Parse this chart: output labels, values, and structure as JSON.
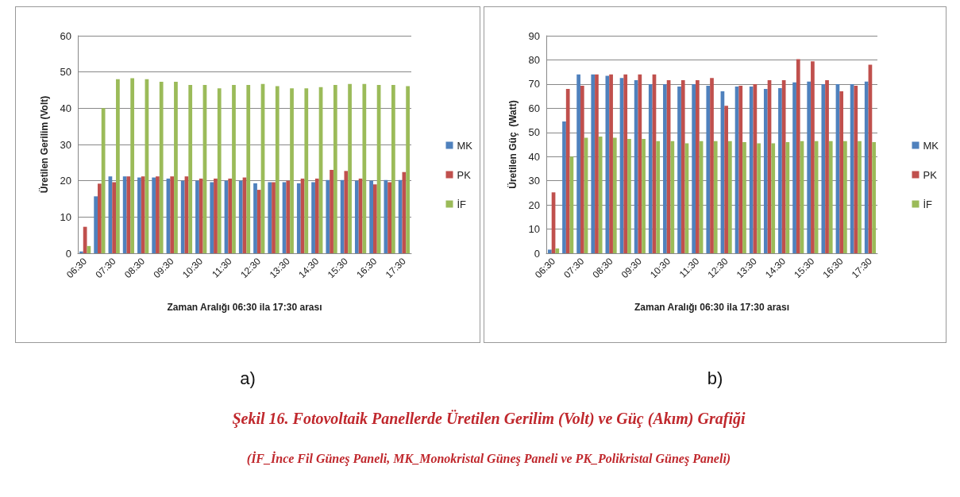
{
  "chart_data": [
    {
      "type": "bar",
      "title": "a)",
      "xlabel": "Zaman Aralığı 06:30 ila 17:30 arası",
      "ylabel": "Üretilen Gerilim (Volt)",
      "categories": [
        "06:30",
        null,
        "07:30",
        null,
        "08:30",
        null,
        "09:30",
        null,
        "10:30",
        null,
        "11:30",
        null,
        "12:30",
        null,
        "13:30",
        null,
        "14:30",
        null,
        "15:30",
        null,
        "16:30",
        null,
        "17:30"
      ],
      "series": [
        {
          "name": "MK",
          "color": "#4f81bd",
          "values": [
            0.5,
            15.7,
            21.2,
            21.2,
            20.9,
            20.9,
            20.6,
            20,
            20,
            19.6,
            20,
            20,
            19.3,
            19.6,
            19.6,
            19.3,
            19.6,
            20.2,
            20.2,
            20,
            20,
            20.2,
            20.2
          ]
        },
        {
          "name": "PK",
          "color": "#c0504d",
          "values": [
            7.3,
            19.2,
            19.6,
            21.2,
            21.2,
            21.2,
            21.2,
            21.2,
            20.6,
            20.6,
            20.6,
            20.9,
            17.5,
            19.6,
            20,
            20.6,
            20.6,
            23,
            22.7,
            20.6,
            19,
            19.6,
            22.4
          ]
        },
        {
          "name": "İF",
          "color": "#9bbb59",
          "values": [
            2,
            40,
            48,
            48.3,
            48,
            47.3,
            47.3,
            46.4,
            46.4,
            45.5,
            46.4,
            46.4,
            46.7,
            46.1,
            45.5,
            45.5,
            45.8,
            46.4,
            46.7,
            46.7,
            46.4,
            46.4,
            46.1
          ]
        }
      ],
      "ylim": [
        0,
        60
      ],
      "yticks": [
        0,
        10,
        20,
        30,
        40,
        50,
        60
      ],
      "grid": "y",
      "legend": "right",
      "annotations": [
        "Şekil 16. Fotovoltaik Panellerde Üretilen Gerilim (Volt) ve Güç (Akım) Grafiği",
        "(İF_İnce Fil Güneş Paneli, MK_Monokristal Güneş Paneli ve PK_Polikristal Güneş Paneli)"
      ]
    },
    {
      "type": "bar",
      "title": "b)",
      "xlabel": "Zaman Aralığı 06:30 ila 17:30 arası",
      "ylabel": "Üretilen Güç  (Watt)",
      "categories": [
        "06:30",
        null,
        "07:30",
        null,
        "08:30",
        null,
        "09:30",
        null,
        "10:30",
        null,
        "11:30",
        null,
        "12:30",
        null,
        "13:30",
        null,
        "14:30",
        null,
        "15:30",
        null,
        "16:30",
        null,
        "17:30"
      ],
      "series": [
        {
          "name": "MK",
          "color": "#4f81bd",
          "values": [
            1.5,
            54.5,
            74,
            74,
            73.4,
            72.5,
            71.6,
            70,
            70,
            69,
            70,
            69.3,
            67,
            69,
            69,
            68,
            68.3,
            70.7,
            71,
            70,
            70,
            70,
            71
          ]
        },
        {
          "name": "PK",
          "color": "#c0504d",
          "values": [
            25.2,
            68,
            69.3,
            74,
            74,
            74,
            74,
            74,
            71.6,
            71.6,
            71.6,
            72.5,
            61,
            69.3,
            70,
            71.6,
            71.6,
            80.3,
            79.4,
            71.6,
            67,
            69.3,
            78
          ]
        },
        {
          "name": "İF",
          "color": "#9bbb59",
          "values": [
            2,
            40,
            47.8,
            48.3,
            47.8,
            47.3,
            47.3,
            46.4,
            46.4,
            45.5,
            46.4,
            46.4,
            46.4,
            46,
            45.5,
            45.5,
            46,
            46.4,
            46.4,
            46.4,
            46.4,
            46.4,
            46
          ]
        }
      ],
      "ylim": [
        0,
        90
      ],
      "yticks": [
        0,
        10,
        20,
        30,
        40,
        50,
        60,
        70,
        80,
        90
      ],
      "grid": "y",
      "legend": "right"
    }
  ]
}
